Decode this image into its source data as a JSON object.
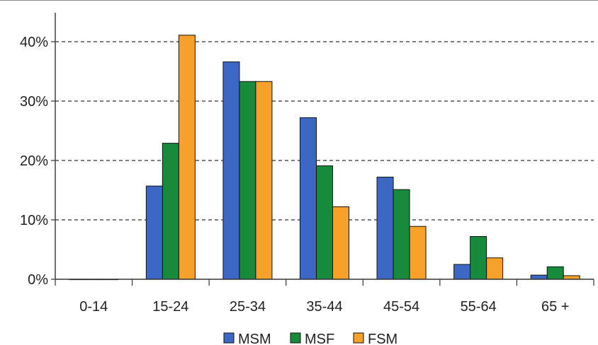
{
  "chart_data": {
    "type": "bar",
    "categories": [
      "0-14",
      "15-24",
      "25-34",
      "35-44",
      "45-54",
      "55-64",
      "65 +"
    ],
    "series": [
      {
        "name": "MSM",
        "color": "#3d67c4",
        "values": [
          0,
          15.7,
          36.6,
          27.2,
          17.2,
          2.5,
          0.7
        ]
      },
      {
        "name": "MSF",
        "color": "#178a3c",
        "values": [
          0,
          22.9,
          33.3,
          19.1,
          15.1,
          7.2,
          2.1
        ]
      },
      {
        "name": "FSM",
        "color": "#f7a12a",
        "values": [
          0,
          41.1,
          33.3,
          12.2,
          8.9,
          3.6,
          0.6
        ]
      }
    ],
    "y_ticks": [
      "0%",
      "10%",
      "20%",
      "30%",
      "40%"
    ],
    "y_tick_values": [
      0,
      10,
      20,
      30,
      40
    ],
    "ylim": [
      0,
      45
    ],
    "grid": "horizontal dashed",
    "legend": "bottom",
    "title": "",
    "xlabel": "",
    "ylabel": ""
  }
}
